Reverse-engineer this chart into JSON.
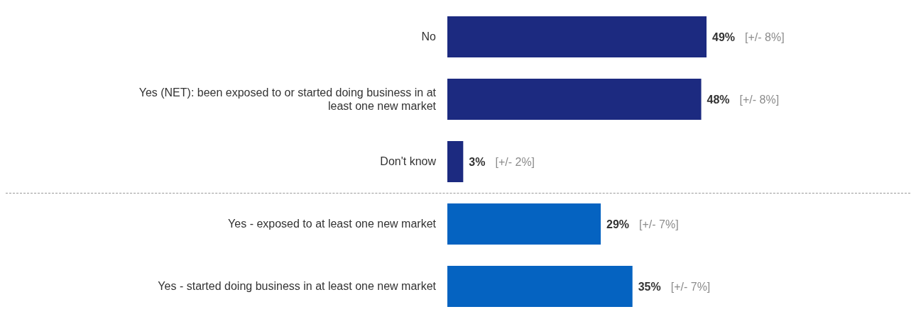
{
  "chart_data": {
    "type": "bar",
    "orientation": "horizontal",
    "categories": [
      "No",
      "Yes (NET): been exposed to or started doing business in at least one new market",
      "Don't know",
      "Yes - exposed to at least one new market",
      "Yes - started doing business in at least one new market"
    ],
    "values": [
      49,
      48,
      3,
      29,
      35
    ],
    "colors": [
      "#1c2a80",
      "#1c2a80",
      "#1c2a80",
      "#0563c1",
      "#0563c1"
    ],
    "value_labels": [
      "49%",
      "48%",
      "3%",
      "29%",
      "35%"
    ],
    "annotations": [
      "[+/- 8%]",
      "[+/- 8%]",
      "[+/- 2%]",
      "[+/- 7%]",
      "[+/- 7%]"
    ]
  }
}
